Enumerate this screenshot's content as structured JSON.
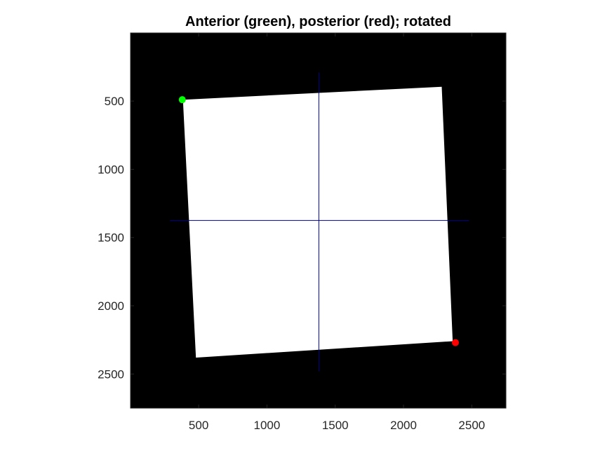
{
  "chart_data": {
    "type": "scatter",
    "title": "Anterior (green), posterior (red); rotated",
    "xlabel": "",
    "ylabel": "",
    "xlim": [
      1,
      2750
    ],
    "ylim": [
      1,
      2750
    ],
    "y_reversed": true,
    "x_ticks": [
      500,
      1000,
      1500,
      2000,
      2500
    ],
    "x_tick_labels": [
      "500",
      "1000",
      "1500",
      "2000",
      "2500"
    ],
    "y_ticks": [
      500,
      1000,
      1500,
      2000,
      2500
    ],
    "y_tick_labels": [
      "500",
      "1000",
      "1500",
      "2000",
      "2500"
    ],
    "background_color": "#000000",
    "image_region": {
      "color": "#ffffff",
      "corners": [
        [
          385,
          490
        ],
        [
          2280,
          395
        ],
        [
          2360,
          2260
        ],
        [
          480,
          2380
        ]
      ]
    },
    "crosshair": {
      "color": "#00008b",
      "vertical": {
        "x": 1380,
        "y_range": [
          290,
          2480
        ]
      },
      "horizontal": {
        "y": 1375,
        "x_range": [
          290,
          2480
        ]
      }
    },
    "series": [
      {
        "color": "#00ff00",
        "points": [
          [
            380,
            490
          ]
        ]
      },
      {
        "color": "#ff0000",
        "points": [
          [
            2380,
            2270
          ]
        ]
      }
    ]
  }
}
